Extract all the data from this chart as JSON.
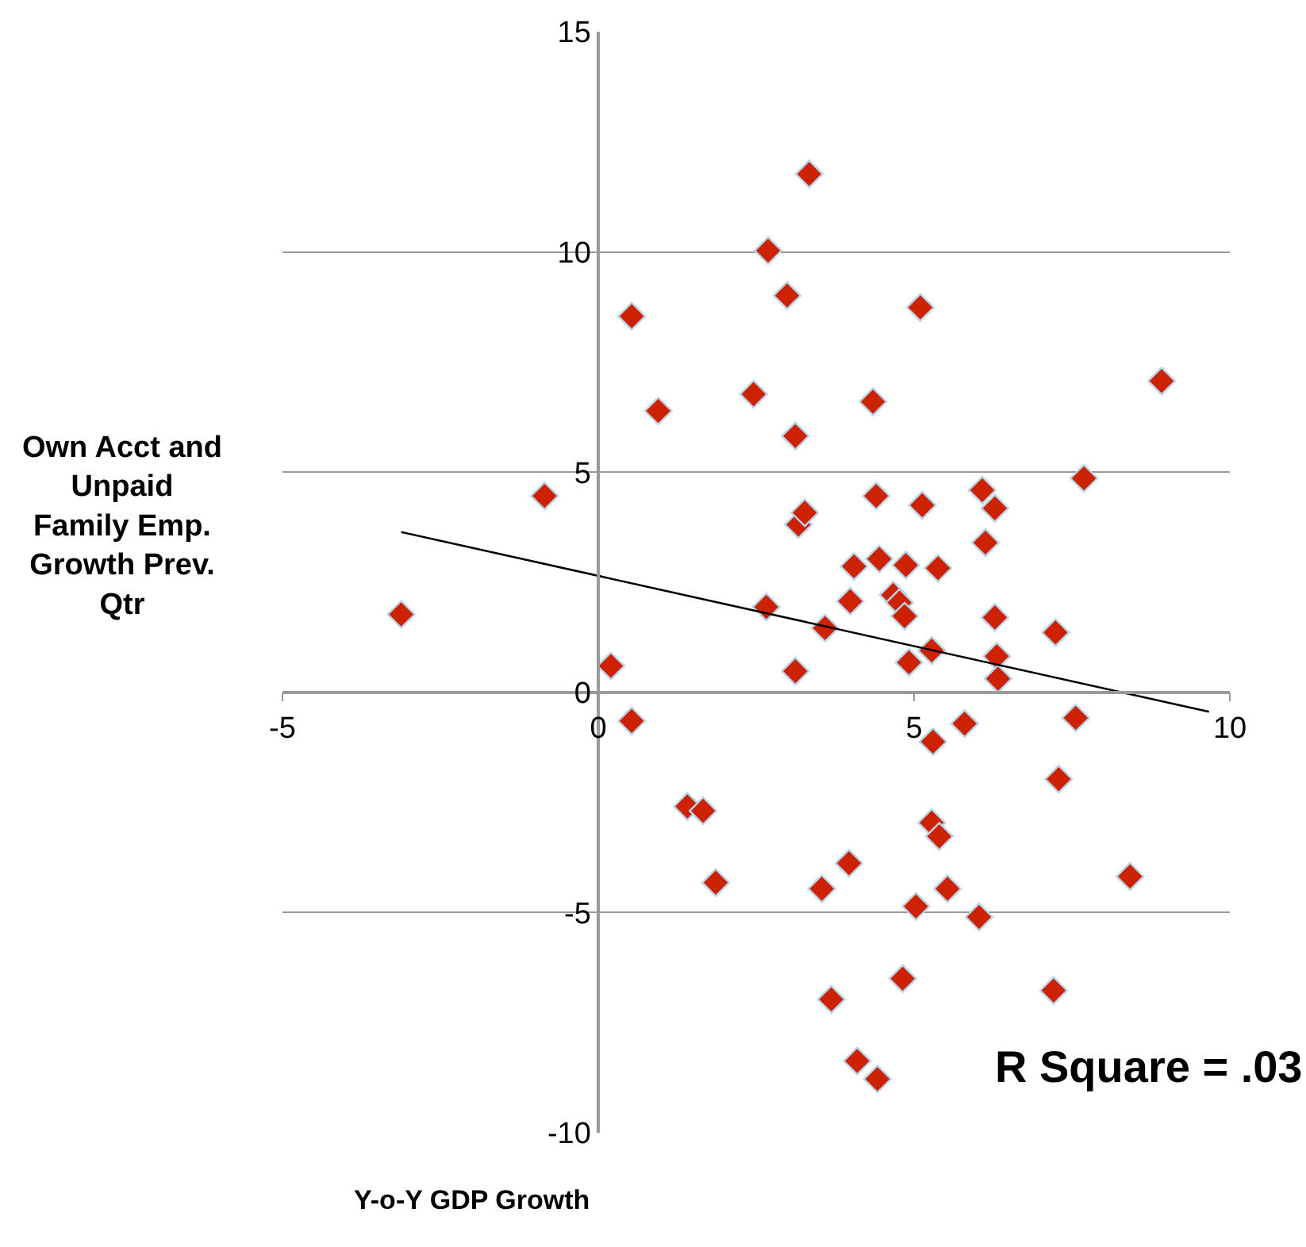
{
  "chart_data": {
    "type": "scatter",
    "xlabel": "Y-o-Y GDP Growth",
    "ylabel": "Own Acct and Unpaid Family Emp. Growth Prev. Qtr",
    "annotations": [
      "R Square = .03"
    ],
    "xlim": [
      -5,
      10
    ],
    "xticks": [
      -5,
      0,
      5,
      10
    ],
    "ylim": [
      -10,
      15
    ],
    "yticks": [
      -10,
      -5,
      0,
      5,
      10,
      15
    ],
    "grid": "y",
    "marker": "diamond",
    "series": [
      {
        "color": "#cc2200",
        "x": [
          -3.12,
          -0.85,
          0.2,
          0.53,
          0.53,
          0.95,
          1.41,
          1.66,
          1.86,
          2.46,
          2.66,
          2.69,
          2.99,
          3.12,
          3.17,
          3.27,
          3.12,
          3.34,
          3.59,
          3.54,
          3.69,
          3.97,
          3.99,
          4.05,
          4.1,
          4.42,
          4.35,
          4.4,
          4.45,
          4.67,
          4.77,
          4.85,
          4.87,
          4.82,
          4.92,
          5.03,
          5.1,
          5.13,
          5.28,
          5.28,
          5.3,
          5.38,
          5.4,
          5.53,
          5.8,
          6.03,
          6.08,
          6.13,
          6.28,
          6.28,
          6.31,
          6.33,
          7.24,
          7.21,
          7.29,
          7.56,
          7.69,
          8.42,
          8.92
        ],
        "values": [
          1.77,
          4.46,
          0.6,
          8.54,
          -0.65,
          6.39,
          -2.59,
          -2.69,
          -4.32,
          6.77,
          1.94,
          10.03,
          9.01,
          5.82,
          3.81,
          4.08,
          0.48,
          11.77,
          1.46,
          -4.46,
          -6.97,
          -3.88,
          2.07,
          2.86,
          -8.37,
          -8.78,
          6.6,
          4.46,
          3.03,
          2.21,
          2.04,
          1.73,
          2.89,
          -6.5,
          0.68,
          -4.86,
          8.74,
          4.25,
          0.95,
          -2.96,
          -1.12,
          2.82,
          -3.27,
          -4.46,
          -0.71,
          -5.1,
          4.59,
          3.4,
          4.18,
          1.7,
          0.82,
          0.31,
          1.36,
          -6.77,
          -1.97,
          -0.58,
          4.86,
          -4.18,
          7.07
        ]
      },
      {
        "type": "line",
        "color": "#000000",
        "marker": "none",
        "line_style": "solid",
        "x": [
          -3.12,
          9.67
        ],
        "values": [
          3.64,
          -0.44
        ]
      }
    ]
  }
}
